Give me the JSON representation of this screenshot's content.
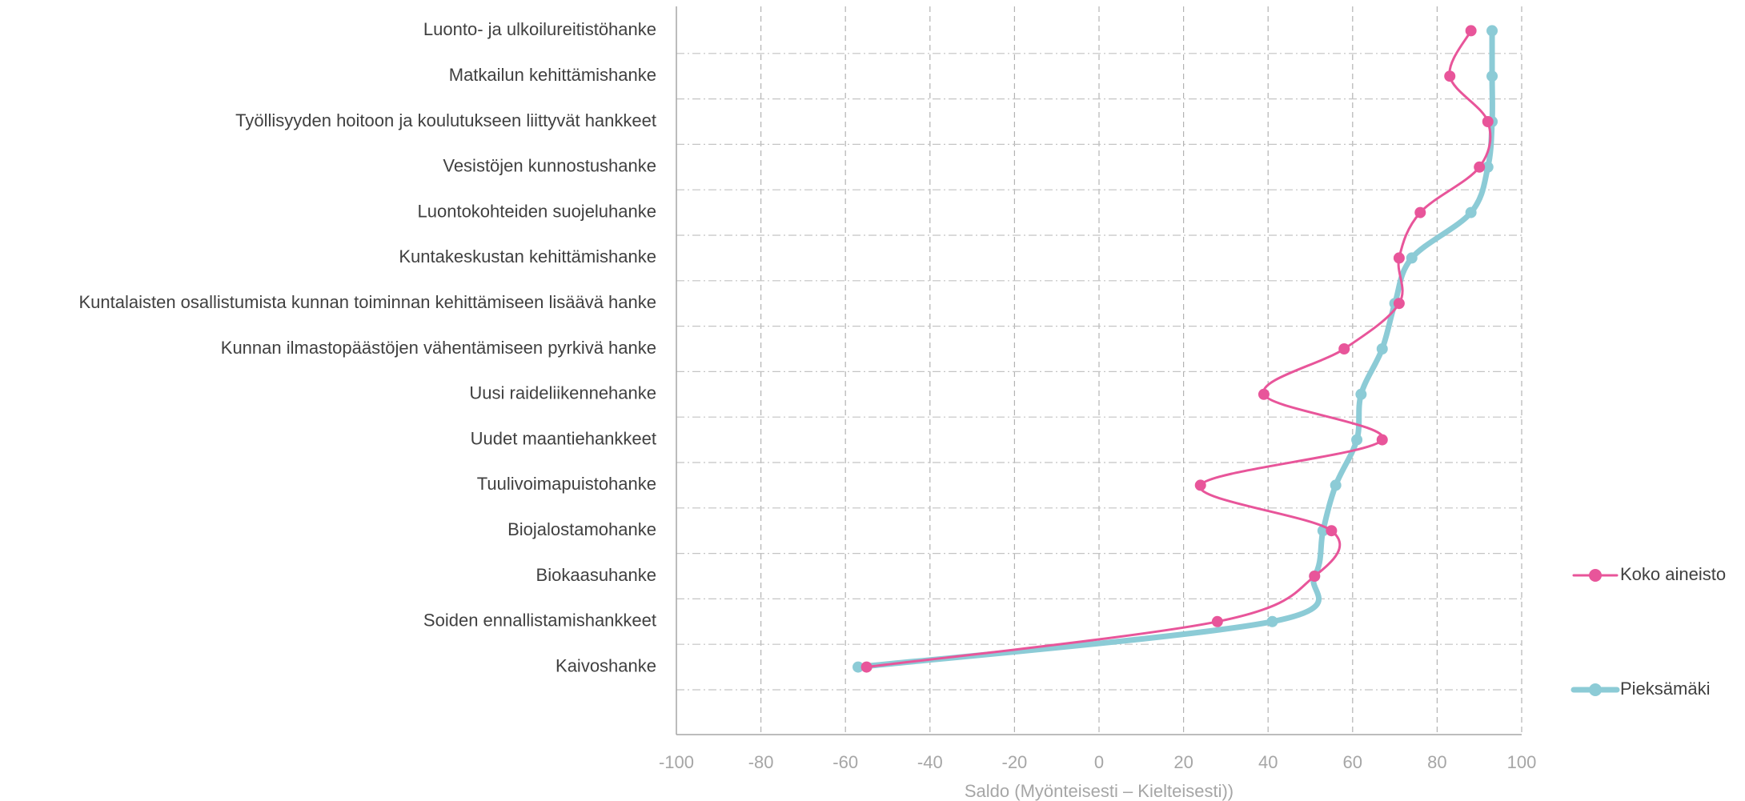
{
  "chart_data": {
    "type": "line",
    "orientation": "horizontal-categories",
    "title": "",
    "xlabel": "Saldo (Myönteisesti – Kielteisesti))",
    "ylabel": "",
    "xlim": [
      -100,
      100
    ],
    "xticks": [
      -100,
      -80,
      -60,
      -40,
      -20,
      0,
      20,
      40,
      60,
      80,
      100
    ],
    "grid": true,
    "legend_position": "right",
    "categories": [
      "Luonto- ja ulkoilureitistöhanke",
      "Matkailun kehittämishanke",
      "Työllisyyden hoitoon ja koulutukseen liittyvät hankkeet",
      "Vesistöjen kunnostushanke",
      "Luontokohteiden suojeluhanke",
      "Kuntakeskustan kehittämishanke",
      "Kuntalaisten osallistumista kunnan toiminnan kehittämiseen lisäävä hanke",
      "Kunnan ilmastopäästöjen vähentämiseen pyrkivä hanke",
      "Uusi raideliikennehanke",
      "Uudet maantiehankkeet",
      "Tuulivoimapuistohanke",
      "Biojalostamohanke",
      "Biokaasuhanke",
      "Soiden ennallistamishankkeet",
      "Kaivoshanke"
    ],
    "series": [
      {
        "name": "Koko aineisto",
        "color": "#e8559a",
        "values": [
          88,
          83,
          92,
          90,
          76,
          71,
          71,
          58,
          39,
          67,
          24,
          55,
          51,
          28,
          -55
        ]
      },
      {
        "name": "Pieksämäki",
        "color": "#8ccbd6",
        "values": [
          93,
          93,
          93,
          92,
          88,
          74,
          70,
          67,
          62,
          61,
          56,
          53,
          51,
          41,
          -57
        ]
      }
    ]
  }
}
